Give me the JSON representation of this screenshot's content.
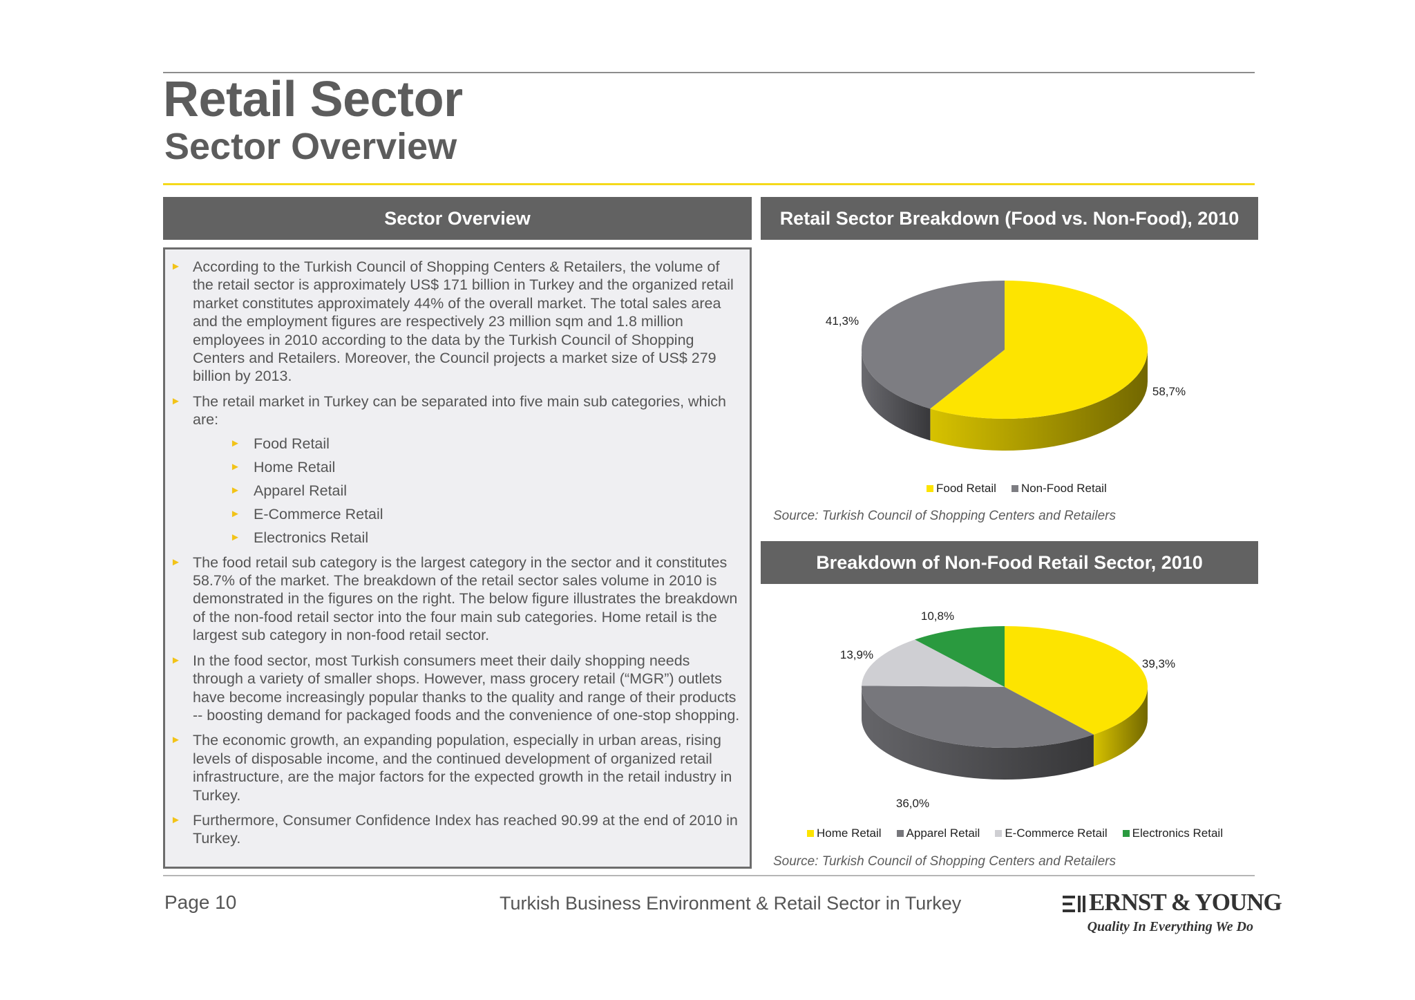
{
  "header": {
    "title": "Retail Sector",
    "subtitle": "Sector Overview"
  },
  "left_panel": {
    "heading": "Sector Overview",
    "bullets": [
      "According to the Turkish Council of Shopping Centers & Retailers, the volume of the retail sector is approximately US$ 171 billion in Turkey and the organized retail market constitutes approximately 44% of the overall market. The total sales area and the employment figures are respectively 23 million sqm and 1.8 million employees in 2010 according to the data by the Turkish Council of Shopping Centers and Retailers. Moreover, the Council projects a market size of US$ 279 billion by 2013.",
      "The retail market in Turkey can be separated into five main sub categories, which are:",
      "The food retail sub category is the largest category in the sector and it constitutes 58.7% of the market. The breakdown of the retail sector sales volume in 2010 is demonstrated in the figures on the right. The below figure illustrates the breakdown of the non-food retail sector into the four main sub categories. Home retail is the largest sub category in non-food retail sector.",
      "In the food sector, most Turkish consumers meet their daily shopping needs through a variety of smaller shops. However, mass grocery retail (“MGR”) outlets have become increasingly popular thanks to the quality and range of their products -- boosting demand for packaged foods and the convenience of one-stop shopping.",
      "The economic growth, an expanding population, especially in urban areas, rising levels of disposable income, and the continued development of organized retail infrastructure, are the major factors for the expected growth in the retail industry in Turkey.",
      "Furthermore, Consumer Confidence Index has reached 90.99 at the end of 2010 in Turkey."
    ],
    "sub_categories": [
      "Food Retail",
      "Home Retail",
      "Apparel Retail",
      "E-Commerce Retail",
      "Electronics Retail"
    ]
  },
  "chart1": {
    "heading": "Retail Sector Breakdown (Food vs. Non-Food), 2010",
    "source": "Source: Turkish Council of Shopping Centers and Retailers"
  },
  "chart2": {
    "heading": "Breakdown of Non-Food Retail Sector, 2010",
    "source": "Source: Turkish Council of Shopping Centers and Retailers"
  },
  "chart_data": [
    {
      "type": "pie",
      "title": "Retail Sector Breakdown (Food vs. Non-Food), 2010",
      "legend_position": "bottom",
      "series": [
        {
          "name": "Food Retail",
          "value": 58.7,
          "label": "58,7%",
          "color": "#fde400"
        },
        {
          "name": "Non-Food Retail",
          "value": 41.3,
          "label": "41,3%",
          "color": "#7d7d82"
        }
      ]
    },
    {
      "type": "pie",
      "title": "Breakdown of Non-Food Retail Sector, 2010",
      "legend_position": "bottom",
      "series": [
        {
          "name": "Home Retail",
          "value": 39.3,
          "label": "39,3%",
          "color": "#fde400"
        },
        {
          "name": "Apparel Retail",
          "value": 36.0,
          "label": "36,0%",
          "color": "#77777c"
        },
        {
          "name": "E-Commerce Retail",
          "value": 13.9,
          "label": "13,9%",
          "color": "#cfcfd3"
        },
        {
          "name": "Electronics Retail",
          "value": 10.8,
          "label": "10,8%",
          "color": "#2a9a3f"
        }
      ]
    }
  ],
  "footer": {
    "page": "Page 10",
    "title": "Turkish Business Environment & Retail Sector in Turkey",
    "logo_name": "ERNST & YOUNG",
    "logo_tagline": "Quality In Everything We Do"
  }
}
